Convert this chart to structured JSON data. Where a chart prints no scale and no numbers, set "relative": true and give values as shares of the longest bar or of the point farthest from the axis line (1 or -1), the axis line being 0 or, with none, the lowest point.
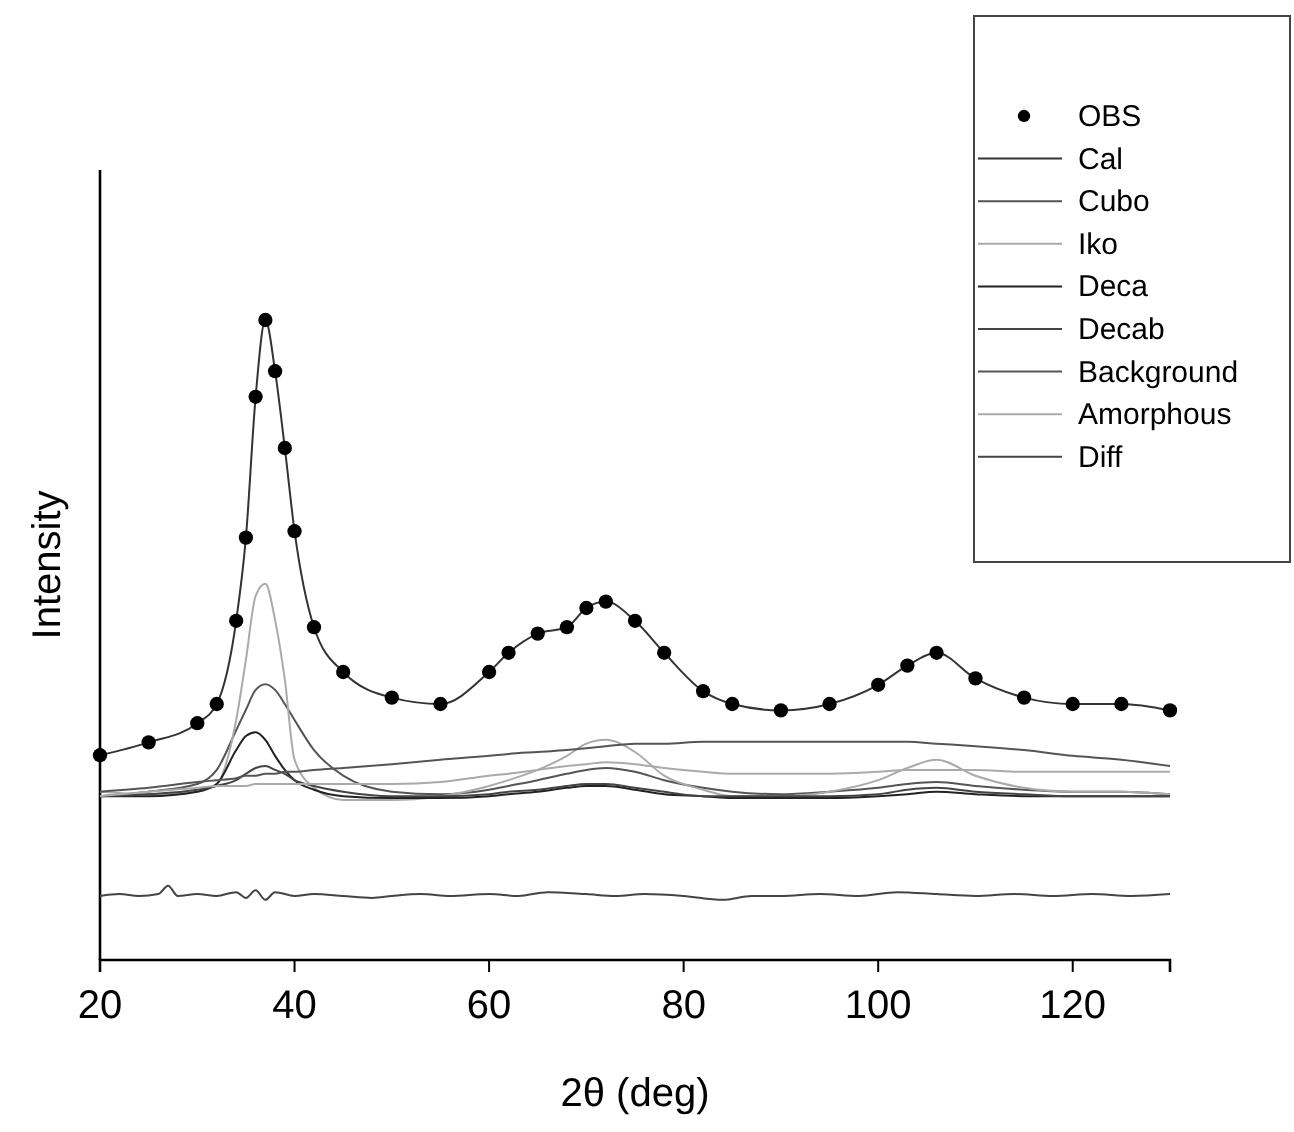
{
  "chart_data": {
    "type": "line",
    "relative": true,
    "xlabel": "2θ (deg)",
    "ylabel": "Intensity",
    "xlim": [
      20,
      130
    ],
    "xticks": [
      20,
      40,
      60,
      80,
      100,
      120
    ],
    "legend": "top right",
    "grid": false,
    "line_style": "solid",
    "x": [
      20,
      25,
      30,
      32,
      34,
      35,
      36,
      37,
      38,
      39,
      40,
      42,
      45,
      50,
      55,
      60,
      62,
      65,
      68,
      70,
      72,
      75,
      78,
      82,
      85,
      90,
      95,
      100,
      103,
      106,
      110,
      115,
      120,
      125,
      130
    ],
    "series": [
      {
        "name": "OBS",
        "type": "scatter",
        "marker": "circle",
        "color": "#000000",
        "values": [
          0.32,
          0.34,
          0.37,
          0.4,
          0.53,
          0.66,
          0.88,
          1,
          0.92,
          0.8,
          0.67,
          0.52,
          0.45,
          0.41,
          0.4,
          0.45,
          0.48,
          0.51,
          0.52,
          0.55,
          0.56,
          0.53,
          0.48,
          0.42,
          0.4,
          0.39,
          0.4,
          0.43,
          0.46,
          0.48,
          0.44,
          0.41,
          0.4,
          0.4,
          0.39
        ]
      },
      {
        "name": "Cal",
        "color": "#333333",
        "values": [
          0.32,
          0.34,
          0.37,
          0.4,
          0.53,
          0.66,
          0.88,
          1,
          0.92,
          0.8,
          0.67,
          0.52,
          0.45,
          0.41,
          0.4,
          0.45,
          0.48,
          0.51,
          0.52,
          0.55,
          0.56,
          0.53,
          0.48,
          0.42,
          0.4,
          0.39,
          0.4,
          0.43,
          0.46,
          0.48,
          0.44,
          0.41,
          0.4,
          0.4,
          0.39
        ]
      },
      {
        "name": "Cubo",
        "color": "#555555",
        "values": [
          0.256,
          0.263,
          0.275,
          0.297,
          0.359,
          0.391,
          0.422,
          0.431,
          0.422,
          0.4,
          0.375,
          0.328,
          0.288,
          0.263,
          0.259,
          0.266,
          0.272,
          0.281,
          0.291,
          0.297,
          0.3,
          0.294,
          0.281,
          0.269,
          0.263,
          0.259,
          0.263,
          0.269,
          0.275,
          0.278,
          0.272,
          0.266,
          0.263,
          0.263,
          0.259
        ]
      },
      {
        "name": "Iko",
        "color": "#aaaaaa",
        "values": [
          0.263,
          0.259,
          0.263,
          0.275,
          0.375,
          0.469,
          0.569,
          0.588,
          0.531,
          0.438,
          0.313,
          0.269,
          0.25,
          0.25,
          0.256,
          0.272,
          0.281,
          0.297,
          0.319,
          0.338,
          0.344,
          0.325,
          0.288,
          0.266,
          0.256,
          0.256,
          0.263,
          0.281,
          0.3,
          0.313,
          0.288,
          0.269,
          0.263,
          0.263,
          0.259
        ]
      },
      {
        "name": "Deca",
        "color": "#222222",
        "values": [
          0.256,
          0.256,
          0.263,
          0.275,
          0.328,
          0.35,
          0.356,
          0.344,
          0.319,
          0.297,
          0.281,
          0.266,
          0.256,
          0.253,
          0.253,
          0.256,
          0.259,
          0.263,
          0.269,
          0.272,
          0.272,
          0.266,
          0.259,
          0.256,
          0.253,
          0.253,
          0.253,
          0.256,
          0.259,
          0.263,
          0.259,
          0.256,
          0.256,
          0.256,
          0.256
        ]
      },
      {
        "name": "Decab",
        "color": "#444444",
        "values": [
          0.256,
          0.259,
          0.266,
          0.272,
          0.281,
          0.291,
          0.3,
          0.303,
          0.297,
          0.291,
          0.281,
          0.272,
          0.263,
          0.256,
          0.256,
          0.259,
          0.263,
          0.266,
          0.272,
          0.275,
          0.275,
          0.269,
          0.263,
          0.256,
          0.256,
          0.256,
          0.256,
          0.259,
          0.266,
          0.269,
          0.263,
          0.259,
          0.256,
          0.256,
          0.256
        ]
      },
      {
        "name": "Background",
        "color": "#555555",
        "values": [
          0.263,
          0.269,
          0.278,
          0.281,
          0.284,
          0.288,
          0.288,
          0.291,
          0.291,
          0.294,
          0.294,
          0.297,
          0.3,
          0.306,
          0.313,
          0.319,
          0.322,
          0.325,
          0.328,
          0.331,
          0.334,
          0.338,
          0.338,
          0.341,
          0.341,
          0.341,
          0.341,
          0.341,
          0.341,
          0.338,
          0.334,
          0.328,
          0.319,
          0.313,
          0.303
        ]
      },
      {
        "name": "Amorphous",
        "color": "#aaaaaa",
        "values": [
          0.256,
          0.263,
          0.269,
          0.272,
          0.272,
          0.272,
          0.275,
          0.275,
          0.275,
          0.275,
          0.275,
          0.275,
          0.275,
          0.275,
          0.278,
          0.288,
          0.291,
          0.297,
          0.303,
          0.306,
          0.309,
          0.306,
          0.3,
          0.294,
          0.291,
          0.291,
          0.291,
          0.294,
          0.297,
          0.297,
          0.297,
          0.294,
          0.294,
          0.294,
          0.294
        ]
      },
      {
        "name": "Diff",
        "color": "#444444",
        "x": [
          20,
          22,
          24,
          26,
          27,
          28,
          30,
          32,
          34,
          35,
          36,
          37,
          38,
          40,
          42,
          45,
          48,
          50,
          53,
          56,
          60,
          63,
          66,
          70,
          73,
          76,
          80,
          84,
          87,
          90,
          94,
          98,
          102,
          106,
          110,
          114,
          118,
          122,
          126,
          130
        ],
        "values": [
          0.1,
          0.103,
          0.1,
          0.103,
          0.116,
          0.1,
          0.103,
          0.1,
          0.106,
          0.097,
          0.109,
          0.094,
          0.106,
          0.1,
          0.103,
          0.1,
          0.097,
          0.1,
          0.103,
          0.1,
          0.103,
          0.1,
          0.106,
          0.103,
          0.1,
          0.103,
          0.1,
          0.094,
          0.1,
          0.1,
          0.103,
          0.1,
          0.106,
          0.103,
          0.1,
          0.103,
          0.1,
          0.103,
          0.1,
          0.103
        ]
      }
    ]
  }
}
